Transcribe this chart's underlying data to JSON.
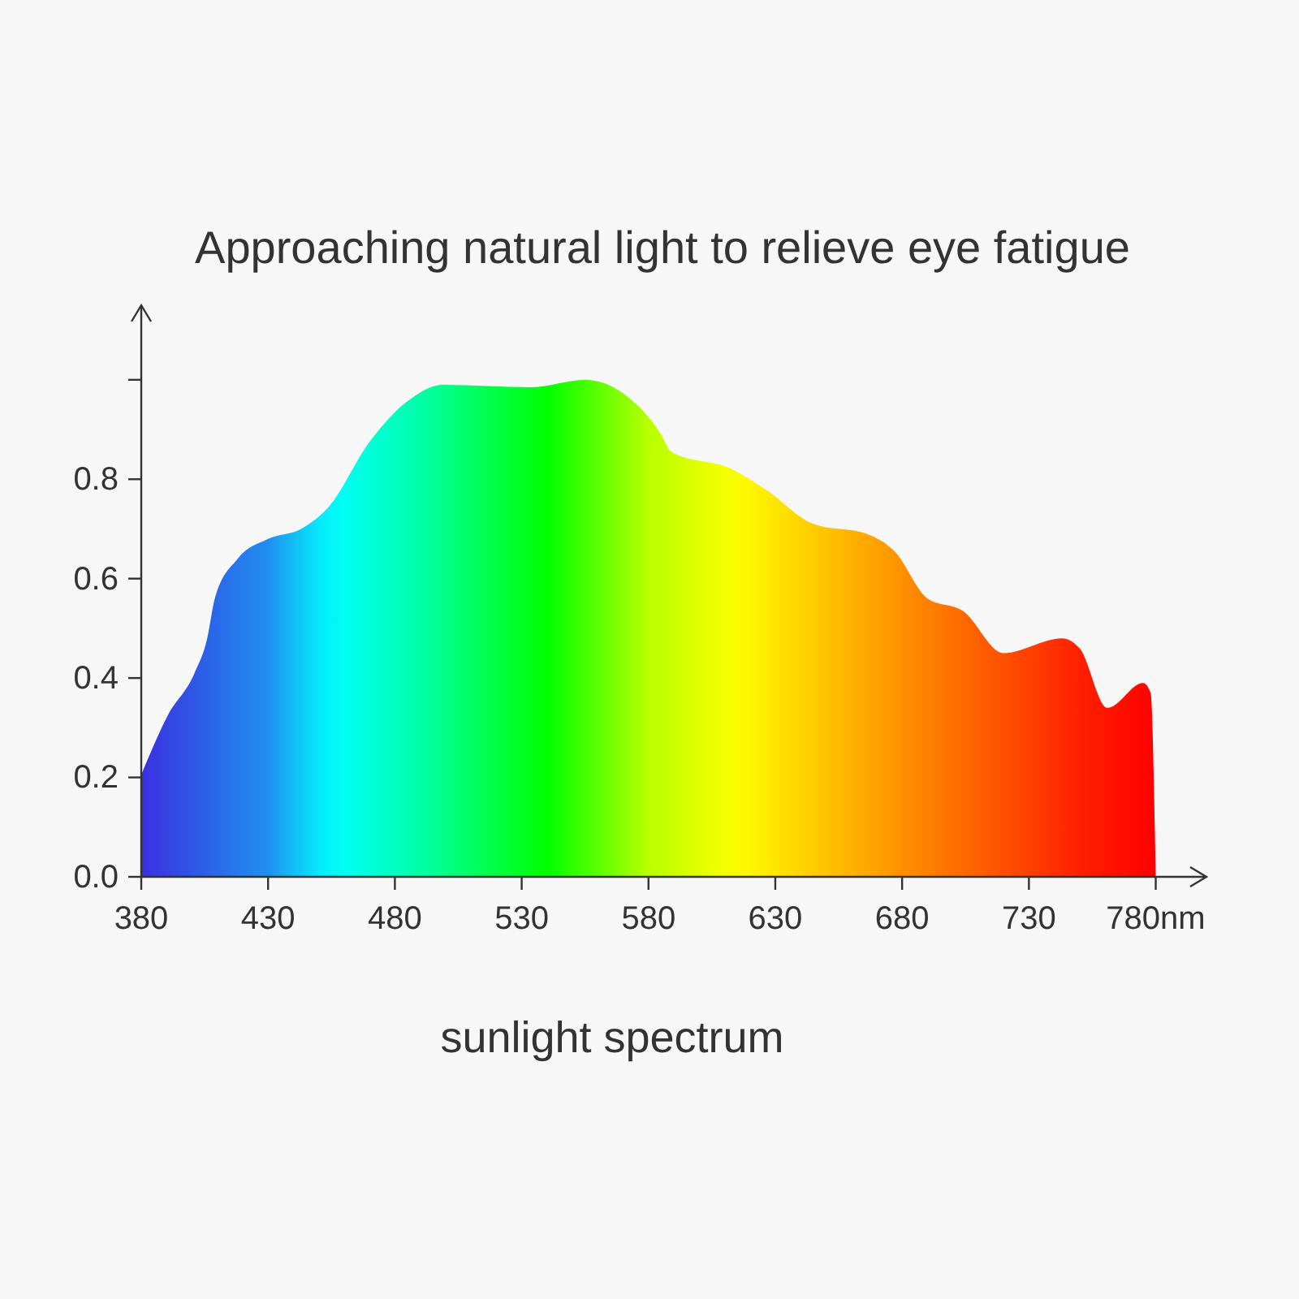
{
  "chart_data": {
    "type": "area",
    "title": "Approaching natural light to relieve eye fatigue",
    "xlabel": "sunlight spectrum",
    "x": [
      380,
      390.5,
      401,
      406,
      409,
      418,
      430,
      443,
      454,
      470,
      484.5,
      499,
      534,
      555,
      572,
      585,
      589,
      613,
      626,
      645,
      666,
      677,
      690,
      704,
      720,
      743,
      750,
      761,
      775,
      778,
      780
    ],
    "series": [
      {
        "values": [
          0.205,
          0.325,
          0.41,
          0.48,
          0.56,
          0.64,
          0.68,
          0.7,
          0.745,
          0.875,
          0.955,
          0.99,
          0.985,
          1.0,
          0.965,
          0.89,
          0.855,
          0.82,
          0.78,
          0.71,
          0.69,
          0.655,
          0.56,
          0.535,
          0.45,
          0.48,
          0.46,
          0.34,
          0.39,
          0.37,
          0
        ]
      }
    ],
    "xlim": [
      380,
      800
    ],
    "ylim": [
      0,
      1.15
    ],
    "xticks": [
      380,
      430,
      480,
      530,
      580,
      630,
      680,
      730,
      {
        "value": 780,
        "label": "780nm"
      }
    ],
    "yticks": [
      {
        "value": 0,
        "label": "0.0"
      },
      0.2,
      0.4,
      0.6,
      0.8,
      {
        "value": 1,
        "label": null
      }
    ],
    "grid": false
  }
}
